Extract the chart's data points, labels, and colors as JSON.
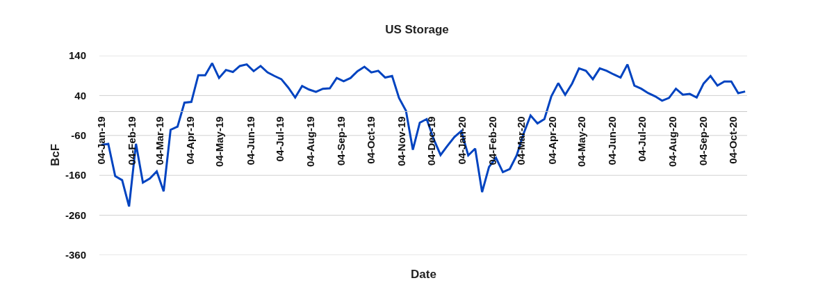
{
  "chart_data": {
    "type": "line",
    "title": "US Storage",
    "xlabel": "Date",
    "ylabel": "BcF",
    "x": [
      "2019-01-04",
      "2019-01-11",
      "2019-01-18",
      "2019-01-25",
      "2019-02-01",
      "2019-02-08",
      "2019-02-15",
      "2019-02-22",
      "2019-03-01",
      "2019-03-08",
      "2019-03-15",
      "2019-03-22",
      "2019-03-29",
      "2019-04-05",
      "2019-04-12",
      "2019-04-19",
      "2019-04-26",
      "2019-05-03",
      "2019-05-10",
      "2019-05-17",
      "2019-05-24",
      "2019-05-31",
      "2019-06-07",
      "2019-06-14",
      "2019-06-21",
      "2019-06-28",
      "2019-07-05",
      "2019-07-12",
      "2019-07-19",
      "2019-07-26",
      "2019-08-02",
      "2019-08-09",
      "2019-08-16",
      "2019-08-23",
      "2019-08-30",
      "2019-09-06",
      "2019-09-13",
      "2019-09-20",
      "2019-09-27",
      "2019-10-04",
      "2019-10-11",
      "2019-10-18",
      "2019-10-25",
      "2019-11-01",
      "2019-11-08",
      "2019-11-15",
      "2019-11-22",
      "2019-11-29",
      "2019-12-06",
      "2019-12-13",
      "2019-12-20",
      "2019-12-27",
      "2020-01-03",
      "2020-01-10",
      "2020-01-17",
      "2020-01-24",
      "2020-01-31",
      "2020-02-07",
      "2020-02-14",
      "2020-02-21",
      "2020-02-28",
      "2020-03-06",
      "2020-03-13",
      "2020-03-20",
      "2020-03-27",
      "2020-04-03",
      "2020-04-10",
      "2020-04-17",
      "2020-04-24",
      "2020-05-01",
      "2020-05-08",
      "2020-05-15",
      "2020-05-22",
      "2020-05-29",
      "2020-06-05",
      "2020-06-12",
      "2020-06-19",
      "2020-06-26",
      "2020-07-03",
      "2020-07-10",
      "2020-07-17",
      "2020-07-24",
      "2020-07-31",
      "2020-08-07",
      "2020-08-14",
      "2020-08-21",
      "2020-08-28",
      "2020-09-04",
      "2020-09-11",
      "2020-09-18",
      "2020-09-25",
      "2020-10-02",
      "2020-10-09",
      "2020-10-16"
    ],
    "series": [
      {
        "color": "#0043c0",
        "values": [
          -84,
          -81,
          -162,
          -172,
          -238,
          -81,
          -178,
          -168,
          -150,
          -200,
          -46,
          -38,
          22,
          24,
          91,
          91,
          121,
          84,
          104,
          99,
          114,
          118,
          101,
          114,
          98,
          89,
          81,
          60,
          35,
          64,
          55,
          49,
          57,
          58,
          84,
          76,
          84,
          101,
          112,
          98,
          102,
          85,
          89,
          34,
          2,
          -96,
          -28,
          -19,
          -69,
          -109,
          -86,
          -64,
          -49,
          -110,
          -93,
          -202,
          -139,
          -116,
          -152,
          -144,
          -110,
          -55,
          -10,
          -30,
          -19,
          38,
          71,
          42,
          70,
          108,
          102,
          81,
          108,
          102,
          93,
          85,
          118,
          65,
          57,
          46,
          38,
          27,
          34,
          57,
          42,
          44,
          35,
          70,
          89,
          65,
          75,
          75,
          46,
          50
        ]
      }
    ],
    "xlim": [
      "2019-01-02",
      "2020-10-18"
    ],
    "xticks": [
      {
        "value": "2019-01-04",
        "label": "04-Jan-19"
      },
      {
        "value": "2019-02-04",
        "label": "04-Feb-19"
      },
      {
        "value": "2019-03-04",
        "label": "04-Mar-19"
      },
      {
        "value": "2019-04-04",
        "label": "04-Apr-19"
      },
      {
        "value": "2019-05-04",
        "label": "04-May-19"
      },
      {
        "value": "2019-06-04",
        "label": "04-Jun-19"
      },
      {
        "value": "2019-07-04",
        "label": "04-Jul-19"
      },
      {
        "value": "2019-08-04",
        "label": "04-Aug-19"
      },
      {
        "value": "2019-09-04",
        "label": "04-Sep-19"
      },
      {
        "value": "2019-10-04",
        "label": "04-Oct-19"
      },
      {
        "value": "2019-11-04",
        "label": "04-Nov-19"
      },
      {
        "value": "2019-12-04",
        "label": "04-Dec-19"
      },
      {
        "value": "2020-01-04",
        "label": "04-Jan-20"
      },
      {
        "value": "2020-02-04",
        "label": "04-Feb-20"
      },
      {
        "value": "2020-03-04",
        "label": "04-Mar-20"
      },
      {
        "value": "2020-04-04",
        "label": "04-Apr-20"
      },
      {
        "value": "2020-05-04",
        "label": "04-May-20"
      },
      {
        "value": "2020-06-04",
        "label": "04-Jun-20"
      },
      {
        "value": "2020-07-04",
        "label": "04-Jul-20"
      },
      {
        "value": "2020-08-04",
        "label": "04-Aug-20"
      },
      {
        "value": "2020-09-04",
        "label": "04-Sep-20"
      },
      {
        "value": "2020-10-04",
        "label": "04-Oct-20"
      }
    ],
    "ylim": [
      -360,
      140
    ],
    "yticks": [
      -360,
      -260,
      -160,
      -60,
      40,
      140
    ],
    "grid": "y"
  }
}
